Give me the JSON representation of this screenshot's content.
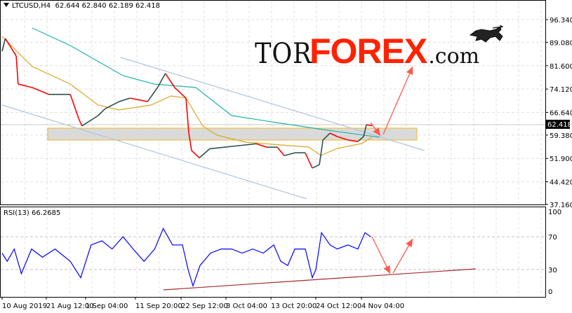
{
  "header": {
    "symbol": "LTCUSD,H4",
    "ohlc": "62.644 62.840 62.189 62.418"
  },
  "logo": {
    "part1": "TOR",
    "part2": "FOREX",
    "part3": ".com"
  },
  "rsi_panel": {
    "label": "RSI(13) 66.2685"
  },
  "colors": {
    "bear_candle": "#ff0000",
    "bull_candle": "#2f4f4f",
    "ma_fast": "#daa520",
    "ma_slow": "#20b2aa",
    "rsi_line": "#0000ff",
    "forecast_arrows": "#ff5a4a",
    "support_zone_border": "#f0c040",
    "channel": "#b0c4de",
    "rsi_trendline": "#a52a2a",
    "logo_accent": "#ff2200"
  },
  "chart_data": [
    {
      "type": "line",
      "title": "LTCUSD,H4",
      "price_axis": {
        "ticks": [
          "96.340",
          "89.080",
          "81.600",
          "74.120",
          "66.640",
          "59.380",
          "51.900",
          "44.420",
          "37.160"
        ],
        "current_price_label": "62.418",
        "ylim": [
          37.16,
          96.34
        ]
      },
      "time_axis": {
        "ticks": [
          "10 Aug 2019",
          "21 Aug 12:00",
          "1 Sep 04:00",
          "11 Sep 20:00",
          "22 Sep 12:00",
          "3 Oct 04:00",
          "13 Oct 20:00",
          "24 Oct 12:00",
          "4 Nov 04:00"
        ]
      },
      "grid": true,
      "series": [
        {
          "key": "price",
          "values": [
            [
              "2019-08-10 00:00",
              86.2
            ],
            [
              "2019-08-10 20:00",
              90.3
            ],
            [
              "2019-08-13 16:00",
              84.7
            ],
            [
              "2019-08-14 04:00",
              75.7
            ],
            [
              "2019-08-17 20:00",
              74.6
            ],
            [
              "2019-08-22 04:00",
              72.4
            ],
            [
              "2019-08-28 00:00",
              72.4
            ],
            [
              "2019-08-30 08:00",
              64.5
            ],
            [
              "2019-08-31 04:00",
              62.3
            ],
            [
              "2019-09-03 20:00",
              65.6
            ],
            [
              "2019-09-05 08:00",
              67.8
            ],
            [
              "2019-09-08 08:00",
              70.1
            ],
            [
              "2019-09-10 16:00",
              71.2
            ],
            [
              "2019-09-14 16:00",
              70.1
            ],
            [
              "2019-09-17 00:00",
              74.6
            ],
            [
              "2019-09-18 20:00",
              79.1
            ],
            [
              "2019-09-21 00:00",
              74.6
            ],
            [
              "2019-09-23 16:00",
              71.2
            ],
            [
              "2019-09-24 08:00",
              60.0
            ],
            [
              "2019-09-25 00:00",
              54.4
            ],
            [
              "2019-09-26 20:00",
              52.1
            ],
            [
              "2019-09-29 08:00",
              55.0
            ],
            [
              "2019-10-02 20:00",
              55.5
            ],
            [
              "2019-10-07 00:00",
              56.1
            ],
            [
              "2019-10-10 08:00",
              56.6
            ],
            [
              "2019-10-12 20:00",
              55.5
            ],
            [
              "2019-10-15 08:00",
              55.5
            ],
            [
              "2019-10-17 00:00",
              52.8
            ],
            [
              "2019-10-19 12:00",
              53.7
            ],
            [
              "2019-10-22 00:00",
              53.7
            ],
            [
              "2019-10-23 16:00",
              48.8
            ],
            [
              "2019-10-25 08:00",
              49.9
            ],
            [
              "2019-10-26 04:00",
              57.8
            ],
            [
              "2019-10-27 20:00",
              60.0
            ],
            [
              "2019-10-29 12:00",
              58.9
            ],
            [
              "2019-11-01 00:00",
              57.8
            ],
            [
              "2019-11-03 08:00",
              57.3
            ],
            [
              "2019-11-04 16:00",
              58.9
            ],
            [
              "2019-11-05 08:00",
              62.7
            ],
            [
              "2019-11-06 16:00",
              62.4
            ]
          ]
        },
        {
          "key": "ma_slow",
          "values": [
            [
              "2019-08-17 20:00",
              93.65
            ],
            [
              "2019-08-28 00:00",
              88.05
            ],
            [
              "2019-09-09 04:00",
              78.41
            ],
            [
              "2019-09-16 04:00",
              75.72
            ],
            [
              "2019-09-26 00:00",
              74.6
            ],
            [
              "2019-10-04 12:00",
              65.63
            ],
            [
              "2019-10-16 04:00",
              63.16
            ],
            [
              "2019-10-26 04:00",
              61.15
            ],
            [
              "2019-11-08 08:00",
              58.68
            ]
          ]
        },
        {
          "key": "ma_fast",
          "values": [
            [
              "2019-08-10 00:00",
              90.96
            ],
            [
              "2019-08-17 20:00",
              81.32
            ],
            [
              "2019-08-28 00:00",
              75.72
            ],
            [
              "2019-09-03 20:00",
              68.99
            ],
            [
              "2019-09-08 08:00",
              67.42
            ],
            [
              "2019-09-15 12:00",
              68.99
            ],
            [
              "2019-09-20 04:00",
              71.91
            ],
            [
              "2019-09-23 16:00",
              71.23
            ],
            [
              "2019-09-27 16:00",
              62.27
            ],
            [
              "2019-10-01 00:00",
              59.35
            ],
            [
              "2019-10-07 20:00",
              57.11
            ],
            [
              "2019-10-16 04:00",
              56.21
            ],
            [
              "2019-10-22 20:00",
              55.54
            ],
            [
              "2019-10-25 16:00",
              52.85
            ],
            [
              "2019-10-29 12:00",
              55.09
            ],
            [
              "2019-11-04 04:00",
              56.66
            ],
            [
              "2019-11-06 16:00",
              58.68
            ]
          ]
        }
      ]
    },
    {
      "type": "line",
      "title": "RSI(13) 66.2685",
      "ylim": [
        0,
        100
      ],
      "y_ticks": [
        "100",
        "70",
        "30",
        "0"
      ],
      "levels": [
        70,
        30
      ],
      "series": [
        {
          "key": "rsi",
          "values": [
            [
              "2019-08-10 00:00",
              50
            ],
            [
              "2019-08-11 08:00",
              40
            ],
            [
              "2019-08-13 04:00",
              55
            ],
            [
              "2019-08-15 00:00",
              25
            ],
            [
              "2019-08-17 16:00",
              55
            ],
            [
              "2019-08-20 12:00",
              45
            ],
            [
              "2019-08-23 20:00",
              55
            ],
            [
              "2019-08-28 00:00",
              40
            ],
            [
              "2019-08-30 20:00",
              20
            ],
            [
              "2019-09-02 08:00",
              60
            ],
            [
              "2019-09-04 16:00",
              65
            ],
            [
              "2019-09-06 20:00",
              55
            ],
            [
              "2019-09-09 04:00",
              70
            ],
            [
              "2019-09-11 08:00",
              55
            ],
            [
              "2019-09-13 20:00",
              40
            ],
            [
              "2019-09-16 08:00",
              55
            ],
            [
              "2019-09-18 08:00",
              80
            ],
            [
              "2019-09-20 12:00",
              60
            ],
            [
              "2019-09-22 20:00",
              60
            ],
            [
              "2019-09-24 04:00",
              30
            ],
            [
              "2019-09-25 08:00",
              10
            ],
            [
              "2019-09-27 00:00",
              35
            ],
            [
              "2019-09-29 12:00",
              50
            ],
            [
              "2019-10-02 00:00",
              55
            ],
            [
              "2019-10-04 12:00",
              55
            ],
            [
              "2019-10-07 00:00",
              50
            ],
            [
              "2019-10-09 12:00",
              55
            ],
            [
              "2019-10-12 00:00",
              50
            ],
            [
              "2019-10-14 12:00",
              60
            ],
            [
              "2019-10-16 04:00",
              40
            ],
            [
              "2019-10-17 20:00",
              35
            ],
            [
              "2019-10-19 12:00",
              55
            ],
            [
              "2019-10-22 00:00",
              55
            ],
            [
              "2019-10-23 16:00",
              20
            ],
            [
              "2019-10-24 12:00",
              30
            ],
            [
              "2019-10-25 20:00",
              75
            ],
            [
              "2019-10-27 20:00",
              60
            ],
            [
              "2019-10-29 12:00",
              55
            ],
            [
              "2019-11-01 00:00",
              60
            ],
            [
              "2019-11-03 08:00",
              55
            ],
            [
              "2019-11-05 00:00",
              75
            ],
            [
              "2019-11-06 08:00",
              70
            ]
          ]
        }
      ]
    }
  ]
}
